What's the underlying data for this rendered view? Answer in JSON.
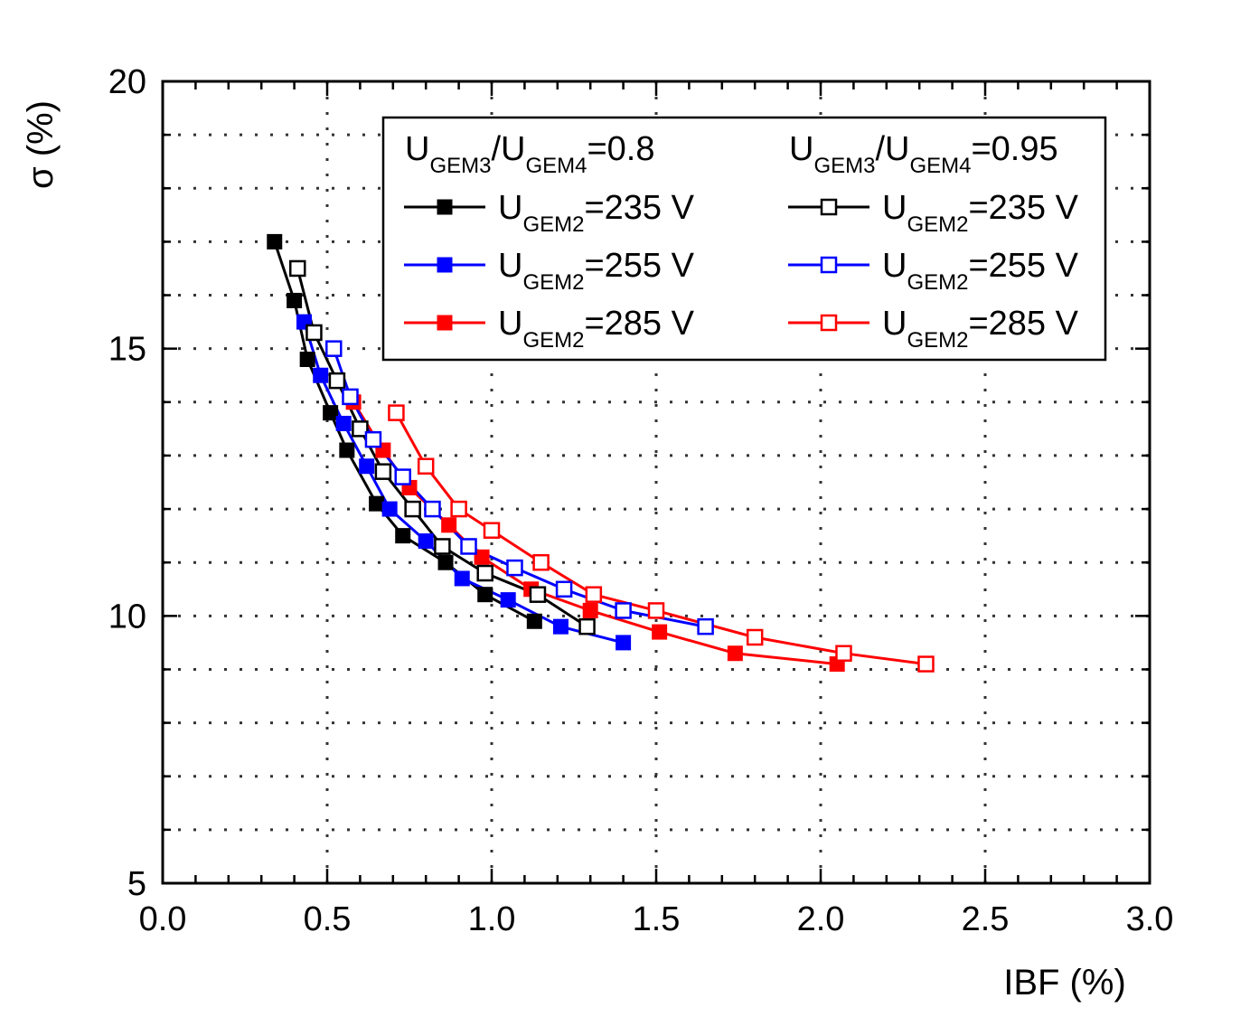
{
  "chart_data": {
    "type": "line",
    "title": "",
    "xlabel": "IBF (%)",
    "ylabel": "σ (%)",
    "xlim": [
      0,
      3
    ],
    "ylim": [
      5,
      20
    ],
    "xticks": [
      0,
      0.5,
      1,
      1.5,
      2,
      2.5,
      3
    ],
    "xtick_labels": [
      "0.0",
      "0.5",
      "1.0",
      "1.5",
      "2.0",
      "2.5",
      "3.0"
    ],
    "yticks": [
      5,
      10,
      15,
      20
    ],
    "ytick_labels": [
      "5",
      "10",
      "15",
      "20"
    ],
    "grid": "dotted",
    "legend_position": "top-right",
    "legend_headers": [
      {
        "main": "U",
        "sub1": "GEM3",
        "mid": "/U",
        "sub2": "GEM4",
        "tail": "=0.8"
      },
      {
        "main": "U",
        "sub1": "GEM3",
        "mid": "/U",
        "sub2": "GEM4",
        "tail": "=0.95"
      }
    ],
    "series": [
      {
        "name": "UGEM2=235 V",
        "label_main": "U",
        "label_sub": "GEM2",
        "label_tail": "=235 V",
        "ratio": "0.8",
        "color": "#000000",
        "marker": "filled-square",
        "x": [
          0.34,
          0.4,
          0.44,
          0.51,
          0.56,
          0.65,
          0.73,
          0.86,
          0.98,
          1.13
        ],
        "y": [
          17.0,
          15.9,
          14.8,
          13.8,
          13.1,
          12.1,
          11.5,
          11.0,
          10.4,
          9.9
        ]
      },
      {
        "name": "UGEM2=255 V",
        "label_main": "U",
        "label_sub": "GEM2",
        "label_tail": "=255 V",
        "ratio": "0.8",
        "color": "#0000ff",
        "marker": "filled-square",
        "x": [
          0.43,
          0.48,
          0.55,
          0.62,
          0.69,
          0.8,
          0.91,
          1.05,
          1.21,
          1.4
        ],
        "y": [
          15.5,
          14.5,
          13.6,
          12.8,
          12.0,
          11.4,
          10.7,
          10.3,
          9.8,
          9.5
        ]
      },
      {
        "name": "UGEM2=285 V",
        "label_main": "U",
        "label_sub": "GEM2",
        "label_tail": "=285 V",
        "ratio": "0.8",
        "color": "#ff0000",
        "marker": "filled-square",
        "x": [
          0.58,
          0.67,
          0.75,
          0.87,
          0.97,
          1.12,
          1.3,
          1.51,
          1.74,
          2.05
        ],
        "y": [
          14.0,
          13.1,
          12.4,
          11.7,
          11.1,
          10.5,
          10.1,
          9.7,
          9.3,
          9.1
        ]
      },
      {
        "name": "UGEM2=235 V",
        "label_main": "U",
        "label_sub": "GEM2",
        "label_tail": "=235 V",
        "ratio": "0.95",
        "color": "#000000",
        "marker": "open-square",
        "x": [
          0.41,
          0.46,
          0.53,
          0.6,
          0.67,
          0.76,
          0.85,
          0.98,
          1.14,
          1.29
        ],
        "y": [
          16.5,
          15.3,
          14.4,
          13.5,
          12.7,
          12.0,
          11.3,
          10.8,
          10.4,
          9.8
        ]
      },
      {
        "name": "UGEM2=255 V",
        "label_main": "U",
        "label_sub": "GEM2",
        "label_tail": "=255 V",
        "ratio": "0.95",
        "color": "#0000ff",
        "marker": "open-square",
        "x": [
          0.52,
          0.57,
          0.64,
          0.73,
          0.82,
          0.93,
          1.07,
          1.22,
          1.4,
          1.65
        ],
        "y": [
          15.0,
          14.1,
          13.3,
          12.6,
          12.0,
          11.3,
          10.9,
          10.5,
          10.1,
          9.8
        ]
      },
      {
        "name": "UGEM2=285 V",
        "label_main": "U",
        "label_sub": "GEM2",
        "label_tail": "=285 V",
        "ratio": "0.95",
        "color": "#ff0000",
        "marker": "open-square",
        "x": [
          0.71,
          0.8,
          0.9,
          1.0,
          1.15,
          1.31,
          1.5,
          1.8,
          2.07,
          2.32
        ],
        "y": [
          13.8,
          12.8,
          12.0,
          11.6,
          11.0,
          10.4,
          10.1,
          9.6,
          9.3,
          9.1
        ]
      }
    ]
  }
}
